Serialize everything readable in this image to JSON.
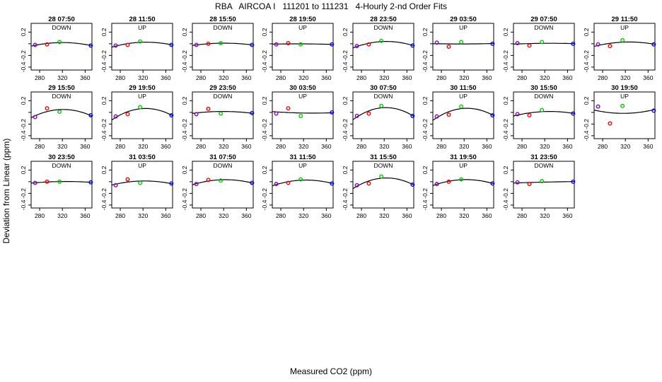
{
  "title": "RBA   AIRCOA I   111201 to 111231   4-Hourly 2-nd Order Fits",
  "xlabel": "Measured CO2 (ppm)",
  "ylabel": "Deviation from Linear (ppm)",
  "colors": {
    "ref1": "#8800cc",
    "ref2": "#ff0000",
    "ref3": "#00cc00",
    "ref4": "#0000ff",
    "curve": "#000000"
  },
  "chart_data": {
    "type": "scatter",
    "x_ticks": [
      280,
      320,
      360
    ],
    "y_ticks": [
      -0.4,
      -0.2,
      0.0,
      0.2
    ],
    "y_tick_labels": [
      "-0.4",
      "-0.2",
      "0.2"
    ],
    "xlim": [
      265,
      372
    ],
    "ylim": [
      -0.45,
      0.35
    ],
    "x": [
      272,
      293,
      315,
      370
    ],
    "panels": [
      {
        "title": "28 07:50",
        "dir": "DOWN",
        "y": [
          -0.02,
          -0.01,
          0.03,
          -0.03
        ]
      },
      {
        "title": "28 11:50",
        "dir": "UP",
        "y": [
          -0.03,
          -0.02,
          0.04,
          -0.02
        ]
      },
      {
        "title": "28 15:50",
        "dir": "DOWN",
        "y": [
          -0.02,
          0.0,
          0.01,
          -0.02
        ]
      },
      {
        "title": "28 19:50",
        "dir": "UP",
        "y": [
          -0.01,
          0.01,
          -0.01,
          -0.01
        ]
      },
      {
        "title": "28 23:50",
        "dir": "DOWN",
        "y": [
          -0.04,
          -0.01,
          0.05,
          -0.03
        ]
      },
      {
        "title": "29 03:50",
        "dir": "UP",
        "y": [
          0.02,
          -0.05,
          0.03,
          0.0
        ]
      },
      {
        "title": "29 07:50",
        "dir": "DOWN",
        "y": [
          0.01,
          -0.03,
          0.03,
          0.0
        ]
      },
      {
        "title": "29 11:50",
        "dir": "UP",
        "y": [
          -0.01,
          -0.04,
          0.06,
          -0.01
        ]
      },
      {
        "title": "29 15:50",
        "dir": "DOWN",
        "y": [
          -0.08,
          0.07,
          0.01,
          -0.05
        ]
      },
      {
        "title": "29 19:50",
        "dir": "UP",
        "y": [
          -0.07,
          -0.03,
          0.09,
          -0.05
        ]
      },
      {
        "title": "29 23:50",
        "dir": "DOWN",
        "y": [
          -0.03,
          0.06,
          -0.02,
          -0.01
        ]
      },
      {
        "title": "30 03:50",
        "dir": "UP",
        "y": [
          -0.02,
          0.07,
          -0.06,
          0.0
        ]
      },
      {
        "title": "30 07:50",
        "dir": "DOWN",
        "y": [
          -0.06,
          -0.02,
          0.11,
          -0.06
        ]
      },
      {
        "title": "30 11:50",
        "dir": "UP",
        "y": [
          -0.07,
          -0.04,
          0.1,
          -0.05
        ]
      },
      {
        "title": "30 15:50",
        "dir": "DOWN",
        "y": [
          -0.03,
          -0.05,
          0.04,
          -0.02
        ]
      },
      {
        "title": "30 19:50",
        "dir": "UP",
        "y": [
          0.1,
          -0.19,
          0.11,
          0.03
        ]
      },
      {
        "title": "30 23:50",
        "dir": "DOWN",
        "y": [
          -0.02,
          0.0,
          0.0,
          -0.01
        ]
      },
      {
        "title": "31 03:50",
        "dir": "UP",
        "y": [
          -0.06,
          0.04,
          -0.02,
          -0.03
        ]
      },
      {
        "title": "31 07:50",
        "dir": "DOWN",
        "y": [
          -0.04,
          0.03,
          0.02,
          -0.02
        ]
      },
      {
        "title": "31 11:50",
        "dir": "UP",
        "y": [
          -0.04,
          -0.02,
          0.04,
          -0.03
        ]
      },
      {
        "title": "31 15:50",
        "dir": "DOWN",
        "y": [
          -0.06,
          -0.03,
          0.09,
          -0.05
        ]
      },
      {
        "title": "31 19:50",
        "dir": "UP",
        "y": [
          -0.04,
          0.0,
          0.04,
          -0.03
        ]
      },
      {
        "title": "31 23:50",
        "dir": "DOWN",
        "y": [
          -0.01,
          -0.04,
          0.01,
          0.0
        ]
      }
    ]
  }
}
